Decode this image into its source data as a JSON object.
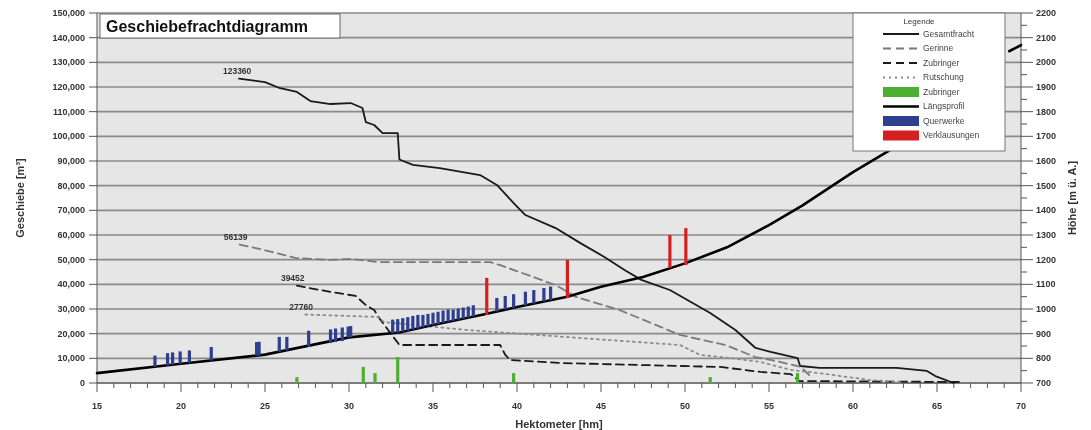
{
  "chart_data": {
    "type": "line",
    "title": "Geschiebefrachtdiagramm",
    "xlabel": "Hektometer [hm]",
    "ylabel": "Geschiebe [m³]",
    "y2label": "Höhe [m ü. A.]",
    "legend_title": "Legende",
    "legend": "top right",
    "grid": "y",
    "xlim": [
      15,
      70
    ],
    "xticks": [
      15,
      {
        "value": 16,
        "label": null
      },
      {
        "value": 17,
        "label": null
      },
      {
        "value": 18,
        "label": null
      },
      {
        "value": 19,
        "label": null
      },
      20,
      {
        "value": 21,
        "label": null
      },
      {
        "value": 22,
        "label": null
      },
      {
        "value": 23,
        "label": null
      },
      {
        "value": 24,
        "label": null
      },
      25,
      {
        "value": 26,
        "label": null
      },
      {
        "value": 27,
        "label": null
      },
      {
        "value": 28,
        "label": null
      },
      {
        "value": 29,
        "label": null
      },
      30,
      {
        "value": 31,
        "label": null
      },
      {
        "value": 32,
        "label": null
      },
      {
        "value": 33,
        "label": null
      },
      {
        "value": 34,
        "label": null
      },
      35,
      {
        "value": 36,
        "label": null
      },
      {
        "value": 37,
        "label": null
      },
      {
        "value": 38,
        "label": null
      },
      {
        "value": 39,
        "label": null
      },
      40,
      {
        "value": 41,
        "label": null
      },
      {
        "value": 42,
        "label": null
      },
      {
        "value": 43,
        "label": null
      },
      {
        "value": 44,
        "label": null
      },
      45,
      {
        "value": 46,
        "label": null
      },
      {
        "value": 47,
        "label": null
      },
      {
        "value": 48,
        "label": null
      },
      {
        "value": 49,
        "label": null
      },
      50,
      {
        "value": 51,
        "label": null
      },
      {
        "value": 52,
        "label": null
      },
      {
        "value": 53,
        "label": null
      },
      {
        "value": 54,
        "label": null
      },
      55,
      {
        "value": 56,
        "label": null
      },
      {
        "value": 57,
        "label": null
      },
      {
        "value": 58,
        "label": null
      },
      {
        "value": 59,
        "label": null
      },
      60,
      {
        "value": 61,
        "label": null
      },
      {
        "value": 62,
        "label": null
      },
      {
        "value": 63,
        "label": null
      },
      {
        "value": 64,
        "label": null
      },
      65,
      {
        "value": 66,
        "label": null
      },
      {
        "value": 67,
        "label": null
      },
      {
        "value": 68,
        "label": null
      },
      {
        "value": 69,
        "label": null
      },
      70
    ],
    "ylim": [
      0,
      150000
    ],
    "yticks": [
      0,
      {
        "value": 10000,
        "label": "10,000"
      },
      {
        "value": 20000,
        "label": "20,000"
      },
      {
        "value": 30000,
        "label": "30,000"
      },
      {
        "value": 40000,
        "label": "40,000"
      },
      {
        "value": 50000,
        "label": "50,000"
      },
      {
        "value": 60000,
        "label": "60,000"
      },
      {
        "value": 70000,
        "label": "70,000"
      },
      {
        "value": 80000,
        "label": "80,000"
      },
      {
        "value": 90000,
        "label": "90,000"
      },
      {
        "value": 100000,
        "label": "100,000"
      },
      {
        "value": 110000,
        "label": "110,000"
      },
      {
        "value": 120000,
        "label": "120,000"
      },
      {
        "value": 130000,
        "label": "130,000"
      },
      {
        "value": 140000,
        "label": "140,000"
      },
      {
        "value": 150000,
        "label": "150,000"
      }
    ],
    "y2lim": [
      700,
      2200
    ],
    "y2ticks": [
      700,
      {
        "value": 750,
        "label": null
      },
      800,
      {
        "value": 850,
        "label": null
      },
      900,
      {
        "value": 950,
        "label": null
      },
      1000,
      {
        "value": 1050,
        "label": null
      },
      1100,
      {
        "value": 1150,
        "label": null
      },
      1200,
      {
        "value": 1250,
        "label": null
      },
      1300,
      {
        "value": 1350,
        "label": null
      },
      1400,
      {
        "value": 1450,
        "label": null
      },
      1500,
      {
        "value": 1550,
        "label": null
      },
      1600,
      {
        "value": 1650,
        "label": null
      },
      1700,
      {
        "value": 1750,
        "label": null
      },
      1800,
      {
        "value": 1850,
        "label": null
      },
      1900,
      {
        "value": 1950,
        "label": null
      },
      2000,
      {
        "value": 2050,
        "label": null
      },
      2100,
      {
        "value": 2150,
        "label": null
      },
      2200
    ],
    "annotations": [
      {
        "text": "123360",
        "x": 23.45,
        "y": 123360
      },
      {
        "text": "56139",
        "x": 23.5,
        "y": 56139
      },
      {
        "text": "39452",
        "x": 26.9,
        "y": 39452
      },
      {
        "text": "27760",
        "x": 27.4,
        "y": 27760
      }
    ],
    "series": [
      {
        "name": "Gesamtfracht",
        "color": "#1a1a1a",
        "line_style": "solid",
        "x": [
          23.45,
          25,
          25.9,
          26.9,
          27.7,
          28.9,
          30.1,
          30.8,
          31,
          31.5,
          32,
          32.9,
          33,
          33.8,
          35.4,
          37.8,
          38.8,
          39.9,
          40.5,
          42.3,
          43.75,
          45.2,
          46.4,
          47.4,
          49.1,
          51.5,
          53,
          54.2,
          55.1,
          56.7,
          56.85,
          58,
          62.6,
          64.4,
          64.9,
          66
        ],
        "values": [
          123360,
          122000,
          119500,
          118000,
          114300,
          113100,
          113500,
          111500,
          105800,
          104600,
          101300,
          101300,
          90600,
          88400,
          87100,
          84300,
          80300,
          72200,
          68100,
          62800,
          56800,
          51100,
          45800,
          41800,
          37700,
          28400,
          21500,
          14200,
          12600,
          10100,
          6900,
          6100,
          6100,
          4900,
          2800,
          0
        ]
      },
      {
        "name": "Gerinne",
        "color": "#7a7a7a",
        "line_style": "dashed",
        "x": [
          23.5,
          24.9,
          26.8,
          28.9,
          30.1,
          31.8,
          38.4,
          39,
          42.3,
          43.5,
          46.1,
          49.7,
          52.4,
          54.2,
          55.7,
          56.9,
          57.4
        ],
        "values": [
          56139,
          54000,
          50700,
          49900,
          50300,
          49000,
          49000,
          47800,
          39700,
          34900,
          29600,
          19500,
          15400,
          10500,
          8500,
          6500,
          3200
        ]
      },
      {
        "name": "Zubringer",
        "color": "#1a1a1a",
        "line_style": "dashed",
        "x": [
          26.9,
          28.9,
          30.4,
          31,
          31.5,
          31.8,
          33,
          39,
          39.3,
          39.6,
          42.6,
          52.1,
          54.5,
          56.3,
          56.8,
          66.4
        ],
        "values": [
          39452,
          36900,
          35300,
          31600,
          29600,
          26300,
          15400,
          15400,
          11400,
          9300,
          8100,
          6500,
          4500,
          3600,
          800,
          400
        ]
      },
      {
        "name": "Rutschung",
        "color": "#8c8c8c",
        "line_style": "dotted",
        "x": [
          27.4,
          31.7,
          32.1,
          37,
          45.5,
          49.7,
          50.9,
          52.7,
          54.5,
          56.3,
          58,
          61,
          62.8
        ],
        "values": [
          27760,
          26800,
          24700,
          21500,
          17400,
          15400,
          11400,
          10100,
          8500,
          5300,
          4000,
          1200,
          400
        ]
      },
      {
        "type": "bar",
        "name": "Zubringer",
        "color": "#4caf30",
        "x": [
          26.9,
          30.85,
          31.55,
          32.9,
          39.8,
          51.5,
          56.7
        ],
        "values": [
          2400,
          6500,
          4000,
          10500,
          4000,
          2400,
          4000
        ]
      },
      {
        "name": "Längsprofil",
        "color": "#000000",
        "line_style": "solid",
        "axis": "y2",
        "x": [
          15,
          20,
          25,
          30,
          33,
          35,
          38,
          40,
          43,
          45,
          47.5,
          50,
          52.5,
          55,
          57,
          60,
          62.2,
          65,
          69.3,
          70
        ],
        "values": [
          740,
          778,
          815,
          885,
          905,
          935,
          978,
          1008,
          1050,
          1090,
          1130,
          1185,
          1250,
          1340,
          1420,
          1555,
          1644,
          null,
          2045,
          2070
        ]
      },
      {
        "type": "bar",
        "name": "Querwerke",
        "color": "#2e3f8f",
        "axis": "y2",
        "x": [
          18.45,
          19.2,
          19.5,
          19.95,
          20.5,
          21.8,
          24.5,
          24.65,
          25.85,
          26.3,
          27.6,
          28.9,
          29.2,
          29.6,
          29.95,
          30.1,
          32.6,
          32.9,
          33.2,
          33.5,
          33.8,
          34.1,
          34.4,
          34.7,
          35,
          35.3,
          35.6,
          35.9,
          36.2,
          36.5,
          36.8,
          37.1,
          37.4,
          38.8,
          39.3,
          39.8,
          40.5,
          41,
          41.6,
          42
        ],
        "base": [
          766,
          771,
          774,
          778,
          782,
          791,
          811,
          812,
          827,
          832,
          847,
          862,
          866,
          870,
          884,
          886,
          902,
          904,
          908,
          912,
          917,
          921,
          926,
          930,
          935,
          939,
          944,
          948,
          952,
          957,
          961,
          965,
          970,
          990,
          998,
          1005,
          1015,
          1022,
          1030,
          1036
        ],
        "values": [
          45,
          50,
          50,
          50,
          50,
          55,
          55,
          55,
          60,
          55,
          65,
          55,
          55,
          55,
          45,
          45,
          55,
          55,
          55,
          55,
          55,
          55,
          50,
          50,
          50,
          50,
          50,
          50,
          45,
          45,
          45,
          45,
          45,
          55,
          55,
          55,
          55,
          55,
          55,
          55
        ]
      },
      {
        "type": "bar",
        "name": "Verklausungen",
        "color": "#d42020",
        "axis": "y2",
        "x": [
          38.2,
          43,
          49.1,
          50.05
        ],
        "base": [
          976,
          1045,
          1166,
          1178
        ],
        "values": [
          150,
          154,
          134,
          150
        ]
      }
    ]
  }
}
